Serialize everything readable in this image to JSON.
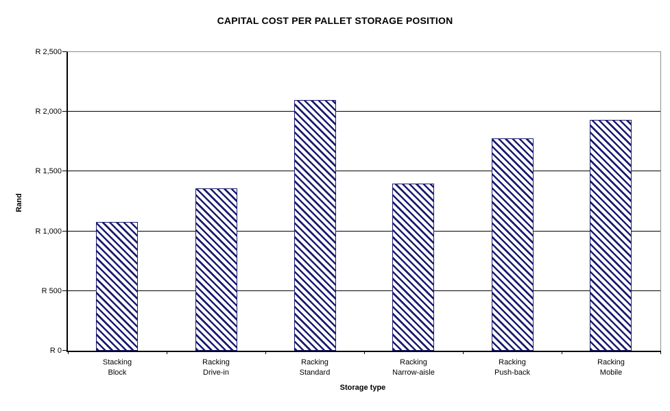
{
  "chart_data": {
    "type": "bar",
    "title": "CAPITAL COST PER PALLET STORAGE POSITION",
    "xlabel": "Storage type",
    "ylabel": "Rand",
    "categories": [
      "Stacking\nBlock",
      "Racking\nDrive-in",
      "Racking\nStandard",
      "Racking\nNarrow-aisle",
      "Racking\nPush-back",
      "Racking\nMobile"
    ],
    "values": [
      1080,
      1360,
      2100,
      1400,
      1780,
      1930
    ],
    "ylim": [
      0,
      2500
    ],
    "ytick_values": [
      0,
      500,
      1000,
      1500,
      2000,
      2500
    ],
    "ytick_labels": [
      "R 0",
      "R 500",
      "R 1,000",
      "R 1,500",
      "R 2,000",
      "R 2,500"
    ],
    "grid": true,
    "legend": "none",
    "bar_style": {
      "hatch": "diagonal-backslash",
      "hatch_color": "#1a1a70",
      "fill_color": "#ffffff",
      "border_color": "#1a1a70"
    },
    "gridline_color": "#000000",
    "axis_color": "#000000",
    "plot_border_color": "#8c8c8c",
    "background_color": "#ffffff"
  }
}
